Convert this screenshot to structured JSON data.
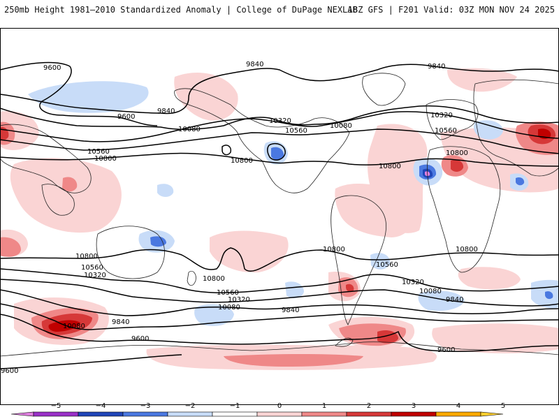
{
  "header": {
    "title_left": "250mb Height 1981–2010 Standardized Anomaly | College of DuPage NEXLAB",
    "title_right": "18Z GFS | F201 Valid: 03Z MON NOV 24 2025"
  },
  "contour_labels": [
    "9600",
    "9840",
    "9840",
    "9840",
    "9600",
    "10080",
    "10320",
    "10080",
    "10320",
    "10560",
    "10560",
    "10560",
    "10800",
    "10800",
    "10800",
    "10800",
    "10800",
    "10800",
    "10800",
    "10560",
    "10320",
    "10800",
    "10560",
    "10320",
    "10080",
    "9840",
    "10320",
    "10080",
    "9840",
    "10080",
    "9840",
    "9600",
    "9600",
    "9600",
    "10560"
  ],
  "legend": {
    "ticks": [
      "−5",
      "−4",
      "−3",
      "−2",
      "−1",
      "0",
      "1",
      "2",
      "3",
      "4",
      "5"
    ],
    "colors": [
      "#e080e0",
      "#9a30c8",
      "#2045b8",
      "#4a78e0",
      "#c8dcf8",
      "#ffffff",
      "#fad4d4",
      "#ef8888",
      "#d63838",
      "#c00000",
      "#ffaa00",
      "#ffd030"
    ]
  },
  "colors": {
    "pos_light": "#fad4d4",
    "pos_mid": "#ef8888",
    "pos_strong": "#d63838",
    "pos_max": "#c00000",
    "neg_light": "#c8dcf8",
    "neg_mid": "#4a78e0",
    "neg_strong": "#2045b8",
    "neg_max": "#e080e0",
    "contour": "#000000",
    "coast": "#222222"
  }
}
